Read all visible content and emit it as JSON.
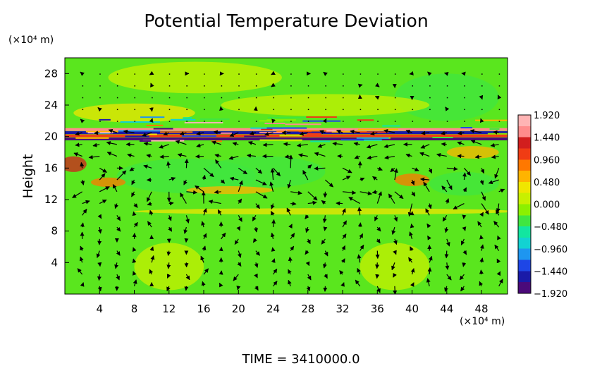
{
  "chart_data": {
    "type": "heatmap",
    "title": "Potential Temperature Deviation",
    "ylabel": "Height",
    "xunit": "(×10⁴ m)",
    "yunit": "(×10⁴ m)",
    "xlim": [
      0,
      51
    ],
    "ylim": [
      0,
      30
    ],
    "xticks": [
      "4",
      "8",
      "12",
      "16",
      "20",
      "24",
      "28",
      "32",
      "36",
      "40",
      "44",
      "48"
    ],
    "yticks": [
      "4",
      "8",
      "12",
      "16",
      "20",
      "24",
      "28"
    ],
    "colorbar": {
      "range": [
        -1.92,
        1.92
      ],
      "labels": [
        "1.920",
        "1.440",
        "0.960",
        "0.480",
        "0.000",
        "−0.480",
        "−0.960",
        "−1.440",
        "−1.920"
      ],
      "colors": [
        "#4b0a7a",
        "#1a1aa8",
        "#1e46e6",
        "#1e96f0",
        "#12d2d2",
        "#12e6a0",
        "#40e640",
        "#8cf000",
        "#c8f000",
        "#f0e600",
        "#ffb400",
        "#ff7800",
        "#f03c14",
        "#d21e1e",
        "#ff8c8c",
        "#ffb4b4"
      ]
    },
    "bands": [
      {
        "y": 20.9,
        "value": 1.5
      },
      {
        "y": 20.5,
        "value": -1.5
      },
      {
        "y": 20.1,
        "value": 1.0
      },
      {
        "y": 19.7,
        "value": -1.8
      }
    ],
    "vector_field": true,
    "grid": false
  },
  "footer": {
    "time_label": "TIME  =  3410000.0"
  }
}
